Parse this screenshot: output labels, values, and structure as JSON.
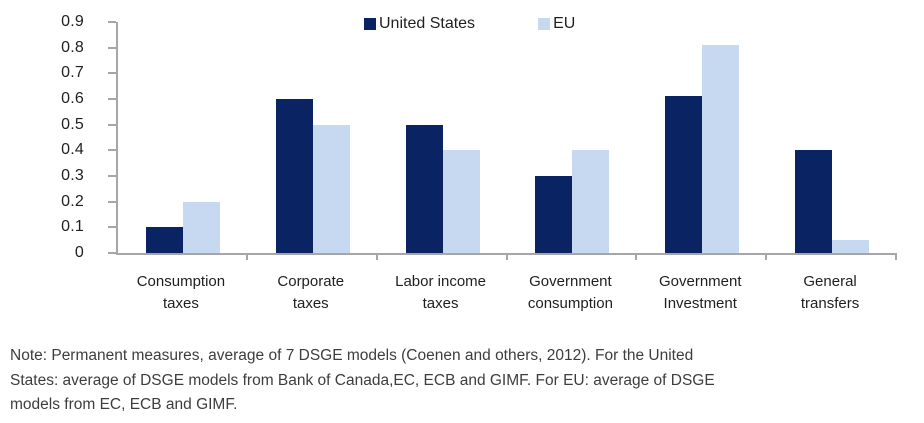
{
  "chart_data": {
    "type": "bar",
    "categories": [
      "Consumption taxes",
      "Corporate taxes",
      "Labor income taxes",
      "Government consumption",
      "Government Investment",
      "General transfers"
    ],
    "categories_lines": [
      [
        "Consumption",
        "taxes"
      ],
      [
        "Corporate",
        "taxes"
      ],
      [
        "Labor income",
        "taxes"
      ],
      [
        "Government",
        "consumption"
      ],
      [
        "Government",
        "Investment"
      ],
      [
        "General",
        "transfers"
      ]
    ],
    "series": [
      {
        "name": "United States",
        "color": "#0a2463",
        "values": [
          0.1,
          0.6,
          0.5,
          0.3,
          0.61,
          0.4
        ]
      },
      {
        "name": "EU",
        "color": "#c6d9f1",
        "values": [
          0.2,
          0.5,
          0.4,
          0.4,
          0.81,
          0.05
        ]
      }
    ],
    "y_axis": {
      "min": 0,
      "max": 0.9,
      "step": 0.1,
      "tick_labels": [
        "0",
        "0.1",
        "0.2",
        "0.3",
        "0.4",
        "0.5",
        "0.6",
        "0.7",
        "0.8",
        "0.9"
      ]
    },
    "legend_position": "top",
    "grid": false,
    "title": "",
    "xlabel": "",
    "ylabel": ""
  },
  "colors": {
    "axis_line": "#a6a6a6",
    "tick_text": "#1f1f1f",
    "note_text": "#3d3d3d",
    "series_us": "#0a2463",
    "series_eu": "#c6d9f1"
  },
  "note_lines": [
    "Note: Permanent measures, average of 7 DSGE models (Coenen and others, 2012). For the United",
    "States: average of DSGE models from Bank of Canada,EC, ECB and GIMF. For EU: average of DSGE",
    "models from EC, ECB and GIMF."
  ],
  "note": "Note: Permanent measures, average of 7 DSGE models (Coenen and others, 2012). For the United States: average of DSGE models from Bank of Canada,EC, ECB and GIMF. For EU: average of DSGE models from EC, ECB and GIMF."
}
